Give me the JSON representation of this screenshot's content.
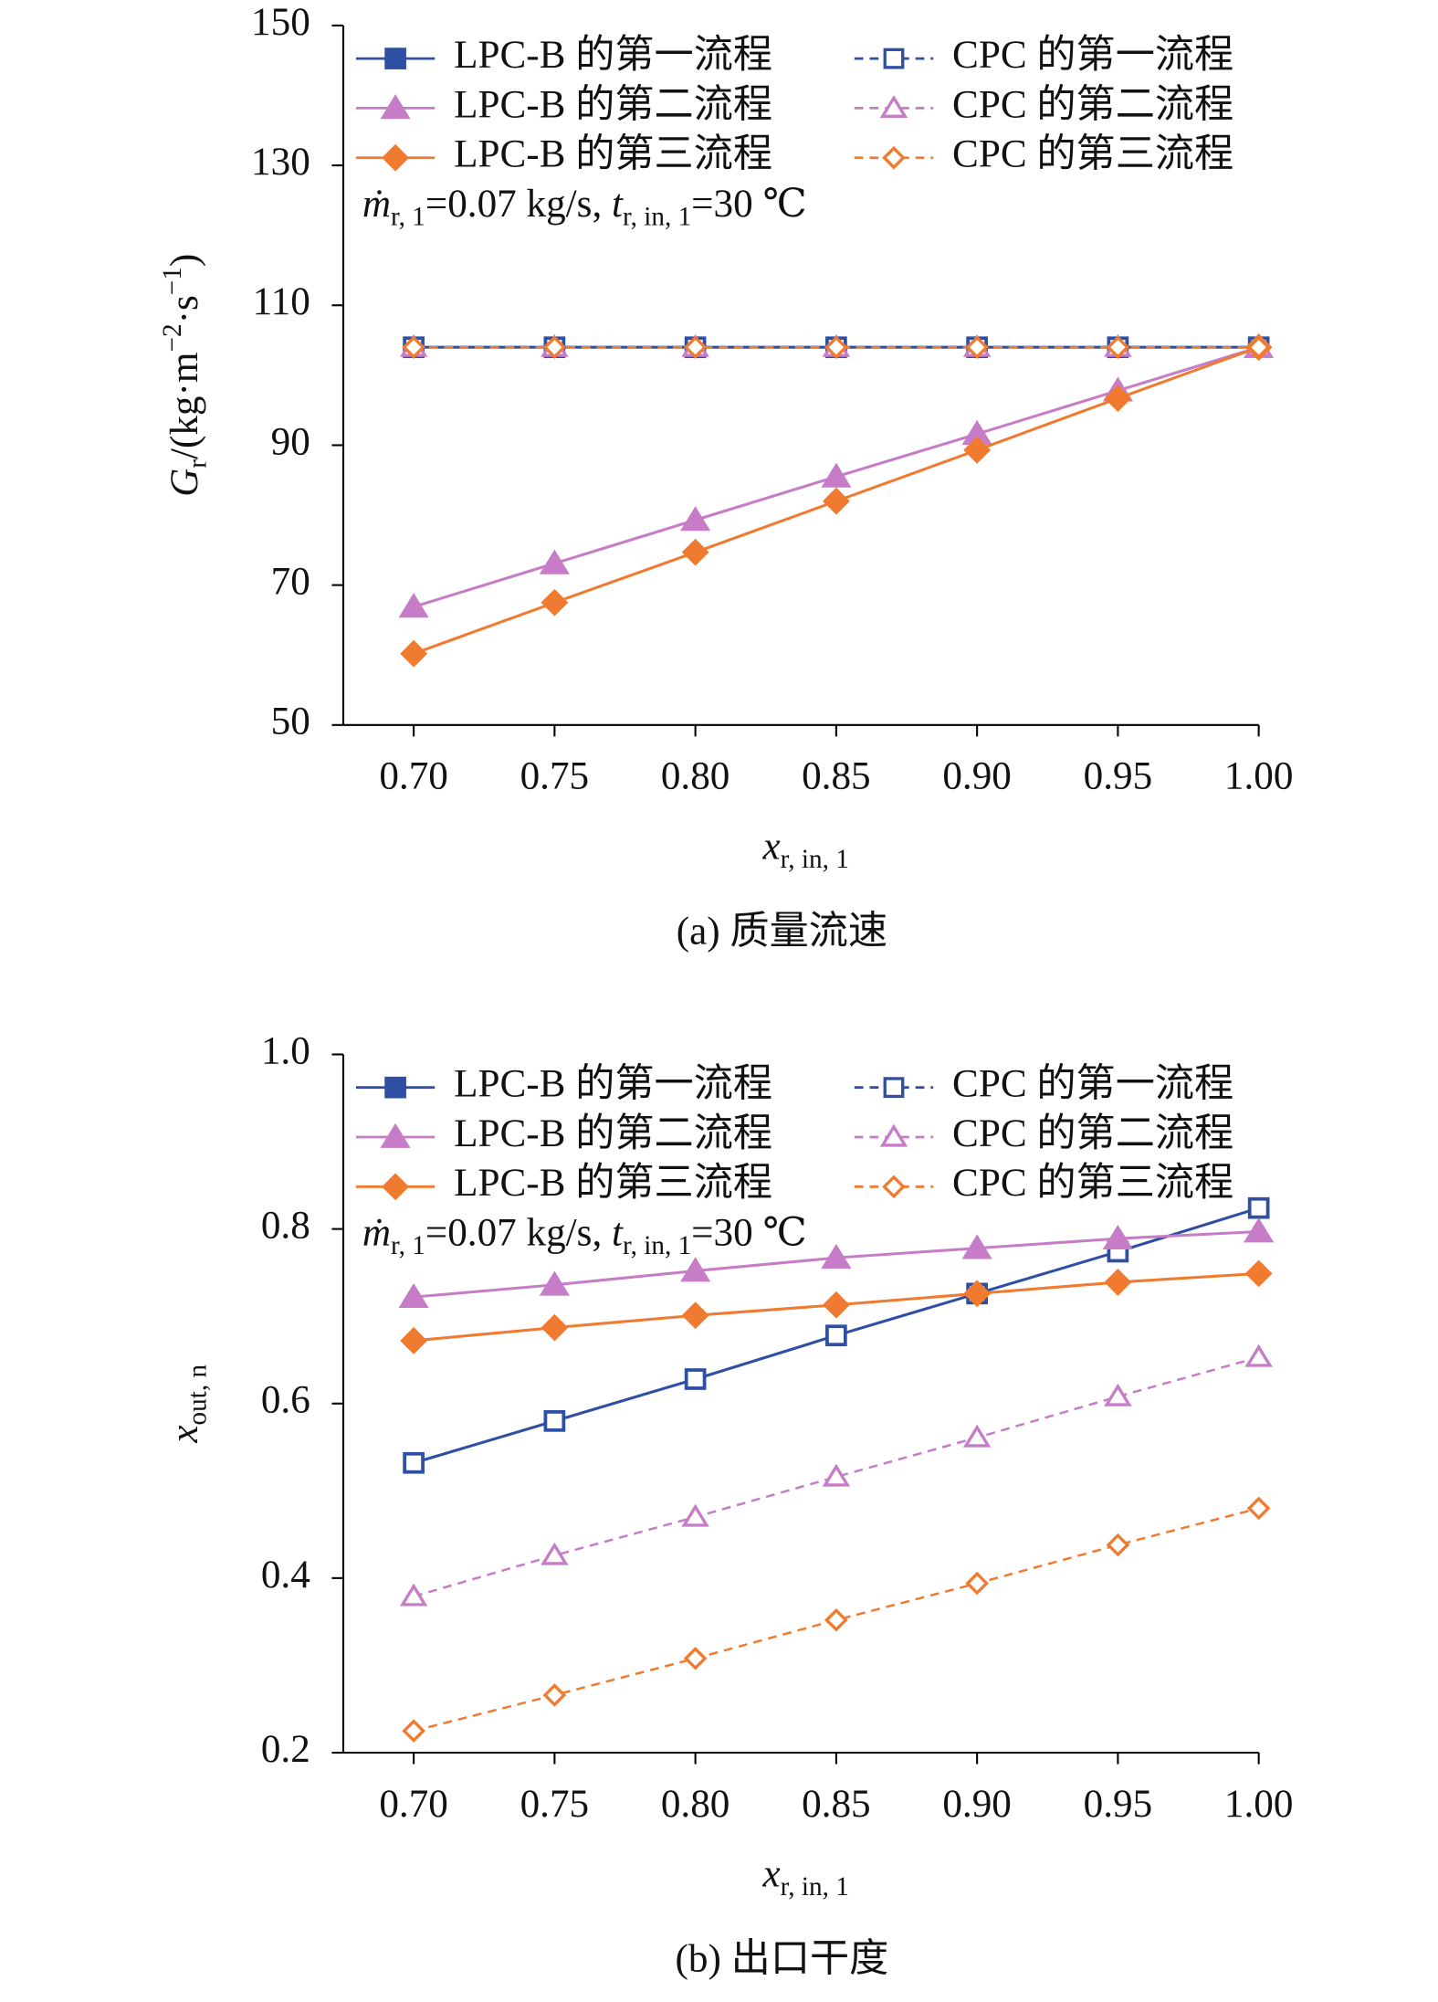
{
  "chart_data": [
    {
      "type": "line",
      "caption": "(a) 质量流速",
      "xlabel": [
        {
          "text": "x",
          "style": "italic"
        },
        {
          "text": "r, in, 1",
          "style": "sub"
        }
      ],
      "ylabel": [
        {
          "text": "G",
          "style": "italic"
        },
        {
          "text": "r",
          "style": "sub"
        },
        {
          "text": "/(kg·m",
          "style": "normal"
        },
        {
          "text": "−2",
          "style": "sup"
        },
        {
          "text": "·s",
          "style": "normal"
        },
        {
          "text": "−1",
          "style": "sup"
        },
        {
          "text": ")",
          "style": "normal"
        }
      ],
      "annotation": [
        {
          "text": "ṁ",
          "style": "italic"
        },
        {
          "text": "r, 1",
          "style": "sub"
        },
        {
          "text": "=0.07 kg/s, ",
          "style": "normal"
        },
        {
          "text": "t",
          "style": "italic"
        },
        {
          "text": "r, in, 1",
          "style": "sub"
        },
        {
          "text": "=30 ℃",
          "style": "normal"
        }
      ],
      "legend": "upper left",
      "x": [
        0.7,
        0.75,
        0.8,
        0.85,
        0.9,
        0.95,
        1.0
      ],
      "xlim": [
        0.675,
        1.0
      ],
      "xticks": [
        {
          "value": 0.7,
          "label": "0.70"
        },
        {
          "value": 0.75,
          "label": "0.75"
        },
        {
          "value": 0.8,
          "label": "0.80"
        },
        {
          "value": 0.85,
          "label": "0.85"
        },
        {
          "value": 0.9,
          "label": "0.90"
        },
        {
          "value": 0.95,
          "label": "0.95"
        },
        {
          "value": 1.0,
          "label": "1.00"
        }
      ],
      "ylim": [
        50,
        150
      ],
      "yticks": [
        50,
        70,
        90,
        110,
        130,
        150
      ],
      "series": [
        {
          "name": "LPC-B 的第一流程",
          "color": "#2e4fa3",
          "marker": "square",
          "filled": true,
          "dashed": false,
          "values": [
            104,
            104,
            104,
            104,
            104,
            104,
            104
          ]
        },
        {
          "name": "CPC 的第一流程",
          "color": "#2e4fa3",
          "marker": "square",
          "filled": false,
          "dashed": true,
          "values": [
            104,
            104,
            104,
            104,
            104,
            104,
            104
          ]
        },
        {
          "name": "LPC-B 的第二流程",
          "color": "#c77cc7",
          "marker": "triangle",
          "filled": true,
          "dashed": false,
          "values": [
            66.9,
            73.1,
            79.3,
            85.5,
            91.6,
            97.8,
            104
          ]
        },
        {
          "name": "CPC 的第二流程",
          "color": "#c77cc7",
          "marker": "triangle",
          "filled": false,
          "dashed": true,
          "values": [
            104,
            104,
            104,
            104,
            104,
            104,
            104
          ]
        },
        {
          "name": "LPC-B 的第三流程",
          "color": "#f07a30",
          "marker": "diamond",
          "filled": true,
          "dashed": false,
          "values": [
            60.2,
            67.5,
            74.7,
            82,
            89.3,
            96.7,
            104
          ]
        },
        {
          "name": "CPC 的第三流程",
          "color": "#f07a30",
          "marker": "diamond",
          "filled": false,
          "dashed": true,
          "values": [
            104,
            104,
            104,
            104,
            104,
            104,
            104
          ]
        }
      ]
    },
    {
      "type": "line",
      "caption": "(b) 出口干度",
      "xlabel": [
        {
          "text": "x",
          "style": "italic"
        },
        {
          "text": "r, in, 1",
          "style": "sub"
        }
      ],
      "ylabel": [
        {
          "text": "x",
          "style": "italic"
        },
        {
          "text": "out, n",
          "style": "sub"
        }
      ],
      "annotation": [
        {
          "text": "ṁ",
          "style": "italic"
        },
        {
          "text": "r, 1",
          "style": "sub"
        },
        {
          "text": "=0.07 kg/s, ",
          "style": "normal"
        },
        {
          "text": "t",
          "style": "italic"
        },
        {
          "text": "r, in, 1",
          "style": "sub"
        },
        {
          "text": "=30 ℃",
          "style": "normal"
        }
      ],
      "legend": "upper left",
      "x": [
        0.7,
        0.75,
        0.8,
        0.85,
        0.9,
        0.95,
        1.0
      ],
      "xlim": [
        0.675,
        1.0
      ],
      "xticks": [
        {
          "value": 0.7,
          "label": "0.70"
        },
        {
          "value": 0.75,
          "label": "0.75"
        },
        {
          "value": 0.8,
          "label": "0.80"
        },
        {
          "value": 0.85,
          "label": "0.85"
        },
        {
          "value": 0.9,
          "label": "0.90"
        },
        {
          "value": 0.95,
          "label": "0.95"
        },
        {
          "value": 1.0,
          "label": "1.00"
        }
      ],
      "ylim": [
        0.2,
        1.0
      ],
      "yticks": [
        0.2,
        0.4,
        0.6,
        0.8,
        {
          "value": 1.0,
          "label": "1.0"
        }
      ],
      "series": [
        {
          "name": "LPC-B 的第一流程",
          "color": "#2e4fa3",
          "marker": "square",
          "filled": true,
          "dashed": false,
          "values": [
            0.532,
            0.58,
            0.628,
            0.678,
            0.726,
            0.774,
            0.824
          ]
        },
        {
          "name": "CPC 的第一流程",
          "color": "#2e4fa3",
          "marker": "square",
          "filled": false,
          "dashed": true,
          "values": [
            0.532,
            0.58,
            0.628,
            0.678,
            0.726,
            0.774,
            0.824
          ]
        },
        {
          "name": "LPC-B 的第二流程",
          "color": "#c77cc7",
          "marker": "triangle",
          "filled": true,
          "dashed": false,
          "values": [
            0.722,
            0.736,
            0.752,
            0.767,
            0.778,
            0.789,
            0.797
          ]
        },
        {
          "name": "CPC 的第二流程",
          "color": "#c77cc7",
          "marker": "triangle",
          "filled": false,
          "dashed": true,
          "values": [
            0.379,
            0.426,
            0.47,
            0.516,
            0.561,
            0.608,
            0.653
          ]
        },
        {
          "name": "LPC-B 的第三流程",
          "color": "#f07a30",
          "marker": "diamond",
          "filled": true,
          "dashed": false,
          "values": [
            0.672,
            0.687,
            0.701,
            0.713,
            0.726,
            0.739,
            0.749
          ]
        },
        {
          "name": "CPC 的第三流程",
          "color": "#f07a30",
          "marker": "diamond",
          "filled": false,
          "dashed": true,
          "values": [
            0.225,
            0.266,
            0.308,
            0.352,
            0.394,
            0.438,
            0.48
          ]
        }
      ]
    }
  ]
}
